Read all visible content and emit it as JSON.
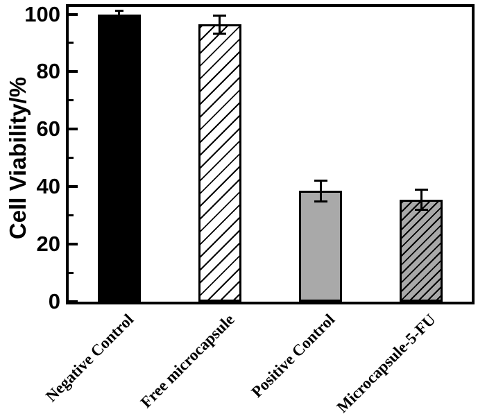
{
  "chart_data": {
    "type": "bar",
    "title": "",
    "xlabel": "",
    "ylabel": "Cell Viability/%",
    "categories": [
      "Negative Control",
      "Free microcapsule",
      "Positive Control",
      "Microcapsule-5-FU"
    ],
    "values": [
      100,
      96.5,
      38.5,
      35.5
    ],
    "errors": [
      1.5,
      3.5,
      4,
      3.8
    ],
    "ylim": [
      0,
      100
    ],
    "yticks": [
      {
        "value": 0,
        "label": "0"
      },
      {
        "value": 20,
        "label": "20"
      },
      {
        "value": 40,
        "label": "40"
      },
      {
        "value": 60,
        "label": "60"
      },
      {
        "value": 80,
        "label": "80"
      },
      {
        "value": 100,
        "label": "100"
      }
    ],
    "minor_yticks": [
      10,
      30,
      50,
      70,
      90
    ],
    "grid": false,
    "legend": "none",
    "bar_styles": [
      {
        "fill": "#000000",
        "hatch": false,
        "hatch_spacing": 0
      },
      {
        "fill": "#ffffff",
        "hatch": true,
        "hatch_spacing": 13
      },
      {
        "fill": "#a9a9a9",
        "hatch": false,
        "hatch_spacing": 0
      },
      {
        "fill": "#a9a9a9",
        "hatch": true,
        "hatch_spacing": 9
      }
    ],
    "hatch_color": "#000000",
    "axis_color": "#000000",
    "error_bar_color": "#000000",
    "background": "#ffffff"
  }
}
